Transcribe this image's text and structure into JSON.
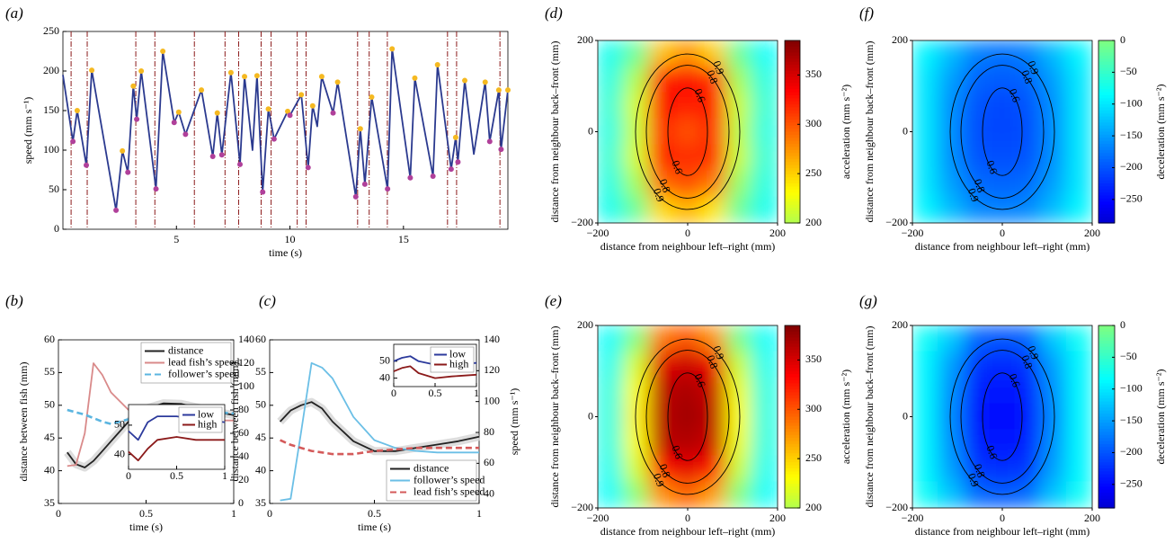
{
  "chart_data": [
    {
      "type": "line",
      "panel": "(a)",
      "xlabel": "time (s)",
      "ylabel": "speed (mm s⁻¹)",
      "xlim": [
        0,
        19.6
      ],
      "xticks": [
        5,
        10,
        15
      ],
      "ylim": [
        0,
        250
      ],
      "yticks": [
        0,
        50,
        100,
        150,
        200,
        250
      ],
      "events": [
        0.36,
        1.07,
        3.21,
        4.05,
        5.79,
        7.14,
        7.74,
        8.73,
        9.17,
        10.32,
        10.71,
        12.98,
        13.49,
        14.29,
        16.94,
        17.34,
        19.25
      ],
      "event_color": "#8b1a1a",
      "series": [
        {
          "kind": "line",
          "color": "#2b3a8f",
          "x": [
            0,
            0.44,
            0.63,
            1.03,
            1.27,
            2.34,
            2.62,
            2.86,
            3.1,
            3.25,
            3.45,
            4.1,
            4.4,
            4.9,
            5.1,
            5.4,
            6.1,
            6.6,
            6.8,
            7.0,
            7.4,
            7.8,
            8.0,
            8.35,
            8.55,
            8.8,
            9.05,
            9.3,
            9.9,
            10.0,
            10.5,
            10.8,
            11.0,
            11.2,
            11.4,
            11.9,
            12.1,
            12.9,
            13.1,
            13.3,
            13.6,
            14.3,
            14.5,
            15.3,
            15.5,
            16.3,
            16.5,
            17.1,
            17.3,
            17.4,
            17.7,
            18.1,
            18.6,
            18.8,
            19.2,
            19.3,
            19.6
          ],
          "values": [
            195,
            111,
            150,
            81,
            201,
            24,
            99,
            72,
            181,
            139,
            200,
            51,
            225,
            135,
            148,
            120,
            176,
            92,
            147,
            94,
            198,
            82,
            193,
            100,
            194,
            47,
            152,
            114,
            149,
            144,
            170,
            78,
            156,
            130,
            193,
            147,
            186,
            41,
            127,
            57,
            167,
            51,
            228,
            65,
            191,
            67,
            208,
            76,
            116,
            85,
            188,
            95,
            186,
            111,
            176,
            101,
            176
          ]
        },
        {
          "kind": "scatter",
          "color": "#f5b921",
          "x": [
            0.63,
            1.27,
            2.62,
            3.1,
            3.45,
            4.4,
            5.1,
            6.1,
            6.8,
            7.4,
            8.0,
            8.55,
            9.05,
            9.9,
            10.5,
            11.0,
            11.4,
            12.1,
            13.1,
            13.6,
            14.5,
            15.5,
            16.5,
            17.3,
            17.7,
            18.6,
            19.2,
            19.6
          ],
          "values": [
            150,
            201,
            99,
            181,
            200,
            225,
            148,
            176,
            147,
            198,
            193,
            194,
            152,
            149,
            170,
            156,
            193,
            186,
            127,
            167,
            228,
            191,
            208,
            116,
            188,
            186,
            176,
            176
          ]
        },
        {
          "kind": "scatter",
          "color": "#b0409a",
          "x": [
            0.44,
            1.03,
            2.34,
            2.86,
            3.25,
            4.1,
            4.9,
            5.4,
            6.6,
            7.0,
            7.8,
            8.8,
            9.3,
            10.0,
            10.8,
            11.9,
            12.9,
            13.3,
            14.3,
            15.3,
            16.3,
            17.1,
            17.4,
            18.8,
            19.3
          ],
          "values": [
            111,
            81,
            24,
            72,
            139,
            51,
            135,
            120,
            92,
            94,
            82,
            47,
            114,
            144,
            78,
            147,
            41,
            57,
            51,
            65,
            67,
            76,
            85,
            111,
            101
          ]
        }
      ]
    },
    {
      "type": "line",
      "panel": "(b)",
      "xlabel": "time (s)",
      "ylabel": "distance between fish (mm)",
      "xlim": [
        0,
        1
      ],
      "xticks": [
        0,
        0.5,
        1
      ],
      "ylim": [
        35,
        60
      ],
      "yticks": [
        35,
        40,
        45,
        50,
        55,
        60
      ],
      "y2lim": [
        0,
        140
      ],
      "y2ticks": [
        0,
        20,
        40,
        60,
        80,
        100,
        120,
        140
      ],
      "legend": "upper right",
      "x": [
        0.05,
        0.1,
        0.15,
        0.2,
        0.25,
        0.3,
        0.4,
        0.5,
        0.6,
        0.7,
        0.8,
        0.9,
        1
      ],
      "series": [
        {
          "name": "distance",
          "color": "#222222",
          "shade": true,
          "values": [
            42.8,
            41,
            40.5,
            41.5,
            43,
            44.5,
            47.5,
            49.5,
            50.3,
            50.2,
            49.6,
            49,
            48.5
          ]
        },
        {
          "name": "lead fish’s speed",
          "color": "#d98a8a",
          "axis": "y2",
          "values": [
            32,
            33,
            60,
            120,
            110,
            95,
            80,
            75,
            75,
            73,
            72,
            71,
            71
          ]
        },
        {
          "name": "follower’s speed",
          "color": "#5bb5e0",
          "axis": "y2",
          "dash": "dashed",
          "values": [
            80,
            78,
            76,
            73,
            70,
            68,
            72,
            76,
            78,
            79,
            79,
            78,
            77
          ]
        }
      ],
      "inset": {
        "xlim": [
          0,
          1
        ],
        "xticks": [
          0,
          0.5,
          1
        ],
        "ylim": [
          35,
          57
        ],
        "yticks": [
          40,
          50
        ],
        "legend": "upper right",
        "x": [
          0,
          0.1,
          0.2,
          0.3,
          0.5,
          0.7,
          1
        ],
        "series": [
          {
            "name": "low",
            "color": "#2c3a9c",
            "values": [
              48,
              45,
              51,
              53,
              53,
              52,
              51
            ]
          },
          {
            "name": "high",
            "color": "#8b1a1a",
            "values": [
              41,
              38,
              42,
              45,
              46,
              45,
              45
            ]
          }
        ]
      }
    },
    {
      "type": "line",
      "panel": "(c)",
      "xlabel": "time (s)",
      "ylabel": "distance between fish (mm)",
      "y2label": "speed (mm s⁻¹)",
      "xlim": [
        0,
        1
      ],
      "xticks": [
        0,
        0.5,
        1
      ],
      "ylim": [
        35,
        60
      ],
      "yticks": [
        35,
        40,
        45,
        50,
        55,
        60
      ],
      "y2lim": [
        34,
        140
      ],
      "y2ticks": [
        40,
        60,
        80,
        100,
        120,
        140
      ],
      "legend": "lower right",
      "x": [
        0.05,
        0.1,
        0.15,
        0.2,
        0.25,
        0.3,
        0.4,
        0.5,
        0.6,
        0.7,
        0.8,
        0.9,
        1
      ],
      "series": [
        {
          "name": "distance",
          "color": "#222222",
          "shade": true,
          "values": [
            47.5,
            49.2,
            50,
            50.5,
            49.5,
            47.5,
            44.5,
            43,
            43,
            43.5,
            44,
            44.5,
            45.2
          ]
        },
        {
          "name": "follower’s speed",
          "color": "#6bbfe6",
          "axis": "y2",
          "values": [
            36,
            37,
            80,
            125,
            122,
            115,
            90,
            75,
            70,
            68,
            67,
            67,
            67
          ]
        },
        {
          "name": "lead fish’s speed",
          "color": "#d45a5a",
          "axis": "y2",
          "dash": "dashed",
          "values": [
            75,
            72,
            70,
            68,
            67,
            66,
            66,
            68,
            69,
            70,
            70,
            70,
            70
          ]
        }
      ],
      "inset": {
        "xlim": [
          0,
          1
        ],
        "xticks": [
          0,
          0.5,
          1
        ],
        "ylim": [
          35,
          60
        ],
        "yticks": [
          40,
          50
        ],
        "legend": "upper right",
        "x": [
          0,
          0.1,
          0.2,
          0.3,
          0.5,
          0.7,
          1
        ],
        "series": [
          {
            "name": "low",
            "color": "#2c3a9c",
            "values": [
              50,
              52,
              53,
              50,
              48,
              48,
              49
            ]
          },
          {
            "name": "high",
            "color": "#8b1a1a",
            "values": [
              44,
              46,
              47,
              43,
              40,
              41,
              42
            ]
          }
        ]
      }
    },
    {
      "type": "heatmap",
      "panel": "(d)",
      "xlabel": "distance from neighbour left–right (mm)",
      "ylabel": "distance from neighbour back–front (mm)",
      "xlim": [
        -200,
        200
      ],
      "xticks": [
        {
          "value": -200,
          "label": "−200"
        },
        0,
        200
      ],
      "ylim": [
        -200,
        200
      ],
      "yticks": [
        {
          "value": -200,
          "label": "−200"
        },
        0,
        200
      ],
      "z": [
        [
          135,
          170,
          255,
          275,
          250,
          170,
          130
        ],
        [
          140,
          200,
          320,
          335,
          315,
          195,
          140
        ],
        [
          145,
          215,
          335,
          320,
          330,
          210,
          145
        ],
        [
          140,
          210,
          320,
          300,
          320,
          205,
          140
        ],
        [
          145,
          215,
          325,
          315,
          320,
          210,
          145
        ],
        [
          140,
          195,
          290,
          305,
          285,
          190,
          140
        ],
        [
          135,
          170,
          245,
          262,
          240,
          170,
          135
        ]
      ],
      "zlim": [
        200,
        385
      ],
      "zticks": [
        200,
        250,
        300,
        350
      ],
      "zlabel": "acceleration (mm s⁻²)",
      "colormap": "jet-warm",
      "contour_levels": [
        0.9,
        0.8,
        0.6
      ]
    },
    {
      "type": "heatmap",
      "panel": "(e)",
      "xlabel": "distance from neighbour left–right (mm)",
      "ylabel": "distance from neighbour back–front (mm)",
      "xlim": [
        -200,
        200
      ],
      "xticks": [
        {
          "value": -200,
          "label": "−200"
        },
        0,
        200
      ],
      "ylim": [
        -200,
        200
      ],
      "yticks": [
        {
          "value": -200,
          "label": "−200"
        },
        0,
        200
      ],
      "z": [
        [
          130,
          180,
          285,
          300,
          275,
          175,
          130
        ],
        [
          135,
          215,
          345,
          355,
          340,
          210,
          135
        ],
        [
          140,
          230,
          360,
          368,
          355,
          225,
          140
        ],
        [
          140,
          235,
          362,
          372,
          360,
          230,
          140
        ],
        [
          140,
          230,
          360,
          365,
          355,
          225,
          140
        ],
        [
          135,
          215,
          330,
          345,
          325,
          210,
          135
        ],
        [
          130,
          185,
          275,
          295,
          270,
          180,
          130
        ]
      ],
      "zlim": [
        200,
        385
      ],
      "zticks": [
        200,
        250,
        300,
        350
      ],
      "zlabel": "acceleration (mm s⁻²)",
      "colormap": "jet-warm",
      "contour_levels": [
        0.9,
        0.8,
        0.6
      ]
    },
    {
      "type": "heatmap",
      "panel": "(f)",
      "xlabel": "distance from neighbour left–right (mm)",
      "ylabel": "distance from neighbour back–front (mm)",
      "xlim": [
        -200,
        200
      ],
      "xticks": [
        {
          "value": -200,
          "label": "−200"
        },
        0,
        200
      ],
      "ylim": [
        -200,
        200
      ],
      "yticks": [
        {
          "value": -200,
          "label": "−200"
        },
        0,
        200
      ],
      "z": [
        [
          -90,
          -130,
          -170,
          -180,
          -170,
          -130,
          -90
        ],
        [
          -100,
          -150,
          -190,
          -195,
          -190,
          -150,
          -100
        ],
        [
          -100,
          -160,
          -200,
          -210,
          -200,
          -160,
          -100
        ],
        [
          -100,
          -160,
          -205,
          -210,
          -205,
          -160,
          -100
        ],
        [
          -100,
          -160,
          -200,
          -205,
          -200,
          -160,
          -100
        ],
        [
          -100,
          -150,
          -185,
          -190,
          -185,
          -150,
          -100
        ],
        [
          -90,
          -130,
          -165,
          -170,
          -165,
          -130,
          -90
        ]
      ],
      "zlim": [
        -287,
        0
      ],
      "zticks": [
        {
          "value": -250,
          "label": "−250"
        },
        {
          "value": -200,
          "label": "−200"
        },
        {
          "value": -150,
          "label": "−150"
        },
        {
          "value": -100,
          "label": "−100"
        },
        {
          "value": -50,
          "label": "−50"
        },
        0
      ],
      "zlabel": "deceleration (mm s⁻²)",
      "colormap": "jet-cool",
      "contour_levels": [
        0.9,
        0.8,
        0.6
      ]
    },
    {
      "type": "heatmap",
      "panel": "(g)",
      "xlabel": "distance from neighbour left–right (mm)",
      "ylabel": "distance from neighbour back–front (mm)",
      "xlim": [
        -200,
        200
      ],
      "xticks": [
        {
          "value": -200,
          "label": "−200"
        },
        0,
        200
      ],
      "ylim": [
        -200,
        200
      ],
      "yticks": [
        {
          "value": -200,
          "label": "−200"
        },
        0,
        200
      ],
      "z": [
        [
          -80,
          -120,
          -190,
          -200,
          -190,
          -120,
          -80
        ],
        [
          -90,
          -150,
          -220,
          -230,
          -220,
          -150,
          -90
        ],
        [
          -90,
          -160,
          -235,
          -245,
          -235,
          -160,
          -90
        ],
        [
          -90,
          -165,
          -240,
          -250,
          -240,
          -165,
          -90
        ],
        [
          -90,
          -160,
          -235,
          -245,
          -235,
          -160,
          -90
        ],
        [
          -90,
          -150,
          -220,
          -225,
          -220,
          -150,
          -90
        ],
        [
          -80,
          -125,
          -185,
          -195,
          -185,
          -125,
          -80
        ]
      ],
      "zlim": [
        -287,
        0
      ],
      "zticks": [
        {
          "value": -250,
          "label": "−250"
        },
        {
          "value": -200,
          "label": "−200"
        },
        {
          "value": -150,
          "label": "−150"
        },
        {
          "value": -100,
          "label": "−100"
        },
        {
          "value": -50,
          "label": "−50"
        },
        0
      ],
      "zlabel": "deceleration (mm s⁻²)",
      "colormap": "jet-cool",
      "contour_levels": [
        0.9,
        0.8,
        0.6
      ]
    }
  ]
}
